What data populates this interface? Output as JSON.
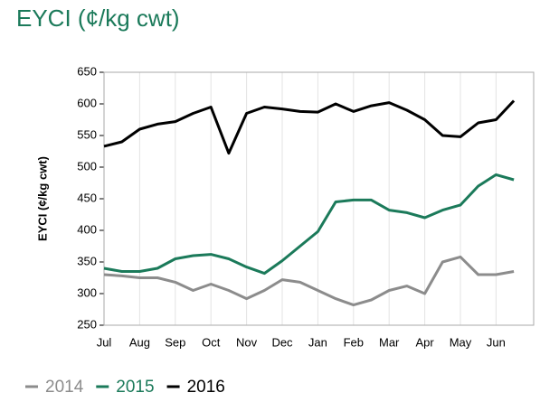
{
  "chart_data": {
    "type": "line",
    "title": "EYCI (¢/kg cwt)",
    "ylabel": "EYCI (¢/kg cwt)",
    "categories": [
      "Jul",
      null,
      "Aug",
      null,
      "Sep",
      null,
      "Oct",
      null,
      "Nov",
      null,
      "Dec",
      null,
      "Jan",
      null,
      "Feb",
      null,
      "Mar",
      null,
      "Apr",
      null,
      "May",
      null,
      "Jun",
      null
    ],
    "series": [
      {
        "name": "2014",
        "color": "#8c8c8c",
        "values": [
          330,
          328,
          325,
          325,
          318,
          305,
          315,
          305,
          292,
          305,
          322,
          318,
          305,
          292,
          282,
          290,
          305,
          312,
          300,
          350,
          358,
          330,
          330,
          335
        ]
      },
      {
        "name": "2015",
        "color": "#1b7a5a",
        "values": [
          340,
          335,
          335,
          340,
          355,
          360,
          362,
          355,
          342,
          332,
          352,
          375,
          398,
          445,
          448,
          448,
          432,
          428,
          420,
          432,
          440,
          470,
          488,
          480
        ]
      },
      {
        "name": "2016",
        "color": "#000000",
        "values": [
          533,
          540,
          560,
          568,
          572,
          585,
          595,
          522,
          585,
          595,
          592,
          588,
          587,
          600,
          588,
          597,
          602,
          590,
          575,
          550,
          548,
          570,
          575,
          605
        ]
      }
    ],
    "ylim": [
      250,
      650
    ],
    "yticks": [
      250,
      300,
      350,
      400,
      450,
      500,
      550,
      600,
      650
    ],
    "grid": "x"
  }
}
